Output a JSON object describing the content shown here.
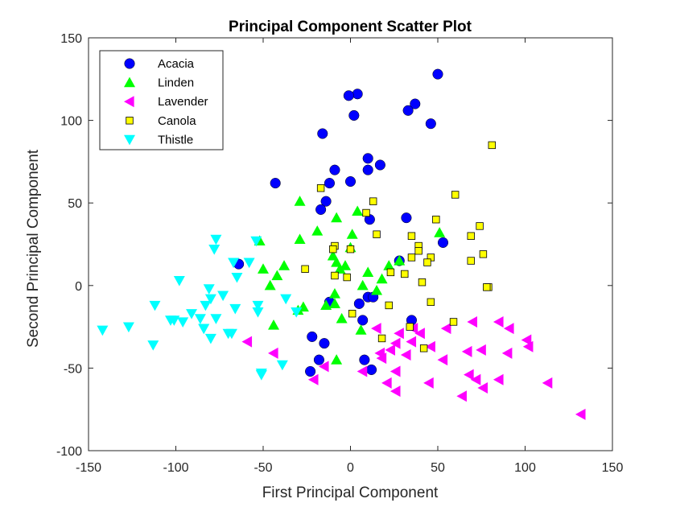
{
  "chart_data": {
    "type": "scatter",
    "title": "Principal Component Scatter Plot",
    "xlabel": "First Principal Component",
    "ylabel": "Second Principal Component",
    "xlim": [
      -150,
      150
    ],
    "ylim": [
      -100,
      150
    ],
    "xticks": [
      -150,
      -100,
      -50,
      0,
      50,
      100,
      150
    ],
    "yticks": [
      -100,
      -50,
      0,
      50,
      100,
      150
    ],
    "legend_position": "top-left",
    "grid": false,
    "series": [
      {
        "name": "Acacia",
        "marker": "circle",
        "color": "#0000ff",
        "points": [
          [
            50,
            128
          ],
          [
            4,
            116
          ],
          [
            -1,
            115
          ],
          [
            37,
            110
          ],
          [
            33,
            106
          ],
          [
            2,
            103
          ],
          [
            46,
            98
          ],
          [
            -16,
            92
          ],
          [
            10,
            77
          ],
          [
            17,
            73
          ],
          [
            10,
            70
          ],
          [
            -9,
            70
          ],
          [
            0,
            63
          ],
          [
            -43,
            62
          ],
          [
            -12,
            62
          ],
          [
            -14,
            51
          ],
          [
            -17,
            46
          ],
          [
            11,
            40
          ],
          [
            32,
            41
          ],
          [
            53,
            26
          ],
          [
            -64,
            13
          ],
          [
            28,
            15
          ],
          [
            10,
            -7
          ],
          [
            13,
            -7
          ],
          [
            -12,
            -10
          ],
          [
            5,
            -11
          ],
          [
            35,
            -21
          ],
          [
            7,
            -21
          ],
          [
            -22,
            -31
          ],
          [
            -15,
            -35
          ],
          [
            -18,
            -45
          ],
          [
            8,
            -45
          ],
          [
            12,
            -51
          ],
          [
            -23,
            -52
          ]
        ]
      },
      {
        "name": "Linden",
        "marker": "triangle-up",
        "color": "#00ff00",
        "points": [
          [
            -29,
            51
          ],
          [
            4,
            45
          ],
          [
            -8,
            41
          ],
          [
            -19,
            33
          ],
          [
            51,
            32
          ],
          [
            1,
            31
          ],
          [
            -52,
            27
          ],
          [
            -29,
            28
          ],
          [
            0,
            23
          ],
          [
            -10,
            18
          ],
          [
            28,
            15
          ],
          [
            -8,
            14
          ],
          [
            -38,
            12
          ],
          [
            -3,
            12
          ],
          [
            22,
            12
          ],
          [
            -50,
            10
          ],
          [
            -6,
            10
          ],
          [
            10,
            8
          ],
          [
            -42,
            6
          ],
          [
            -46,
            0
          ],
          [
            18,
            4
          ],
          [
            7,
            0
          ],
          [
            15,
            -3
          ],
          [
            -9,
            -5
          ],
          [
            -30,
            -15
          ],
          [
            -27,
            -13
          ],
          [
            -14,
            -12
          ],
          [
            -9,
            -11
          ],
          [
            -5,
            -20
          ],
          [
            6,
            -27
          ],
          [
            -44,
            -24
          ],
          [
            -8,
            -45
          ]
        ]
      },
      {
        "name": "Lavender",
        "marker": "triangle-left",
        "color": "#ff00ff",
        "points": [
          [
            85,
            -22
          ],
          [
            70,
            -22
          ],
          [
            55,
            -26
          ],
          [
            91,
            -26
          ],
          [
            15,
            -26
          ],
          [
            28,
            -29
          ],
          [
            36,
            -26
          ],
          [
            40,
            -29
          ],
          [
            101,
            -33
          ],
          [
            -59,
            -34
          ],
          [
            35,
            -34
          ],
          [
            46,
            -37
          ],
          [
            75,
            -39
          ],
          [
            26,
            -35
          ],
          [
            23,
            -39
          ],
          [
            102,
            -37
          ],
          [
            -44,
            -41
          ],
          [
            32,
            -42
          ],
          [
            17,
            -41
          ],
          [
            67,
            -40
          ],
          [
            90,
            -41
          ],
          [
            18,
            -44
          ],
          [
            53,
            -45
          ],
          [
            -15,
            -49
          ],
          [
            7,
            -52
          ],
          [
            26,
            -52
          ],
          [
            68,
            -54
          ],
          [
            72,
            -57
          ],
          [
            85,
            -57
          ],
          [
            -21,
            -57
          ],
          [
            21,
            -59
          ],
          [
            45,
            -59
          ],
          [
            113,
            -59
          ],
          [
            76,
            -62
          ],
          [
            26,
            -64
          ],
          [
            64,
            -67
          ],
          [
            132,
            -78
          ]
        ]
      },
      {
        "name": "Canola",
        "marker": "square",
        "color": "#ffff00",
        "points": [
          [
            81,
            85
          ],
          [
            60,
            55
          ],
          [
            13,
            51
          ],
          [
            -17,
            59
          ],
          [
            9,
            44
          ],
          [
            49,
            40
          ],
          [
            15,
            31
          ],
          [
            74,
            36
          ],
          [
            69,
            30
          ],
          [
            35,
            30
          ],
          [
            -9,
            24
          ],
          [
            -10,
            22
          ],
          [
            39,
            24
          ],
          [
            0,
            22
          ],
          [
            39,
            21
          ],
          [
            76,
            19
          ],
          [
            35,
            17
          ],
          [
            46,
            17
          ],
          [
            69,
            15
          ],
          [
            44,
            14
          ],
          [
            -26,
            10
          ],
          [
            -9,
            6
          ],
          [
            -2,
            5
          ],
          [
            23,
            8
          ],
          [
            31,
            7
          ],
          [
            41,
            2
          ],
          [
            79,
            -1
          ],
          [
            78,
            -1
          ],
          [
            22,
            -12
          ],
          [
            46,
            -10
          ],
          [
            1,
            -17
          ],
          [
            34,
            -25
          ],
          [
            59,
            -22
          ],
          [
            18,
            -32
          ],
          [
            42,
            -38
          ]
        ]
      },
      {
        "name": "Thistle",
        "marker": "triangle-down",
        "color": "#00ffff",
        "points": [
          [
            -77,
            28
          ],
          [
            -78,
            22
          ],
          [
            -54,
            27
          ],
          [
            -67,
            14
          ],
          [
            -58,
            14
          ],
          [
            -98,
            3
          ],
          [
            -65,
            5
          ],
          [
            -81,
            -2
          ],
          [
            -73,
            -6
          ],
          [
            -80,
            -8
          ],
          [
            -37,
            -8
          ],
          [
            -83,
            -12
          ],
          [
            -53,
            -12
          ],
          [
            -112,
            -12
          ],
          [
            -91,
            -17
          ],
          [
            -53,
            -16
          ],
          [
            -66,
            -14
          ],
          [
            -77,
            -20
          ],
          [
            -84,
            -26
          ],
          [
            -86,
            -20
          ],
          [
            -96,
            -22
          ],
          [
            -101,
            -21
          ],
          [
            -103,
            -21
          ],
          [
            -142,
            -27
          ],
          [
            -127,
            -25
          ],
          [
            -84,
            -26
          ],
          [
            -70,
            -29
          ],
          [
            -68,
            -29
          ],
          [
            -80,
            -32
          ],
          [
            -113,
            -36
          ],
          [
            -39,
            -48
          ],
          [
            -51,
            -54
          ],
          [
            -51,
            -53
          ],
          [
            -31,
            -16
          ]
        ]
      }
    ]
  }
}
